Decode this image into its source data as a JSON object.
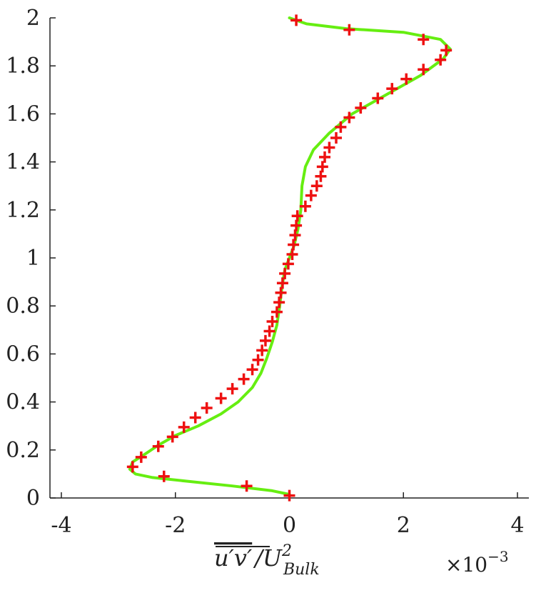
{
  "chart_data": {
    "type": "line",
    "xlabel": {
      "overline": "u′v′",
      "slash": "/",
      "base": "U",
      "sup": "2",
      "sub": "Bulk"
    },
    "x_multiplier": "×10",
    "x_multiplier_exp": "−3",
    "xlim": [
      -4.2,
      4.2
    ],
    "ylim": [
      0,
      2
    ],
    "x_ticks": [
      -4,
      -2,
      0,
      2,
      4
    ],
    "x_tick_labels": [
      "-4",
      "-2",
      "0",
      "2",
      "4"
    ],
    "y_ticks": [
      0,
      0.2,
      0.4,
      0.6,
      0.8,
      1,
      1.2,
      1.4,
      1.6,
      1.8,
      2
    ],
    "y_tick_labels": [
      "0",
      "0.2",
      "0.4",
      "0.6",
      "0.8",
      "1",
      "1.2",
      "1.4",
      "1.6",
      "1.8",
      "2"
    ],
    "grid": false,
    "series": [
      {
        "type": "line",
        "color": "#66ee11",
        "points": [
          [
            0.0,
            0.015
          ],
          [
            -0.3,
            0.03
          ],
          [
            -1.0,
            0.05
          ],
          [
            -1.8,
            0.07
          ],
          [
            -2.4,
            0.085
          ],
          [
            -2.7,
            0.1
          ],
          [
            -2.8,
            0.12
          ],
          [
            -2.75,
            0.15
          ],
          [
            -2.55,
            0.18
          ],
          [
            -2.3,
            0.22
          ],
          [
            -2.0,
            0.26
          ],
          [
            -1.6,
            0.3
          ],
          [
            -1.2,
            0.35
          ],
          [
            -0.9,
            0.4
          ],
          [
            -0.65,
            0.46
          ],
          [
            -0.5,
            0.52
          ],
          [
            -0.4,
            0.58
          ],
          [
            -0.3,
            0.65
          ],
          [
            -0.22,
            0.72
          ],
          [
            -0.17,
            0.8
          ],
          [
            -0.13,
            0.88
          ],
          [
            -0.08,
            0.95
          ],
          [
            0.0,
            1.0
          ],
          [
            0.08,
            1.05
          ],
          [
            0.15,
            1.12
          ],
          [
            0.2,
            1.2
          ],
          [
            0.22,
            1.3
          ],
          [
            0.28,
            1.38
          ],
          [
            0.42,
            1.45
          ],
          [
            0.7,
            1.52
          ],
          [
            1.1,
            1.6
          ],
          [
            1.7,
            1.68
          ],
          [
            2.3,
            1.76
          ],
          [
            2.7,
            1.83
          ],
          [
            2.82,
            1.87
          ],
          [
            2.65,
            1.91
          ],
          [
            2.0,
            1.94
          ],
          [
            1.0,
            1.955
          ],
          [
            0.3,
            1.975
          ],
          [
            0.0,
            2.0
          ]
        ]
      },
      {
        "type": "scatter",
        "marker": "+",
        "color": "#ee1111",
        "points": [
          [
            0.0,
            0.01
          ],
          [
            -0.75,
            0.05
          ],
          [
            -2.2,
            0.09
          ],
          [
            -2.75,
            0.13
          ],
          [
            -2.6,
            0.17
          ],
          [
            -2.3,
            0.215
          ],
          [
            -2.05,
            0.255
          ],
          [
            -1.85,
            0.295
          ],
          [
            -1.65,
            0.335
          ],
          [
            -1.45,
            0.375
          ],
          [
            -1.2,
            0.415
          ],
          [
            -1.0,
            0.455
          ],
          [
            -0.8,
            0.495
          ],
          [
            -0.65,
            0.535
          ],
          [
            -0.55,
            0.575
          ],
          [
            -0.48,
            0.615
          ],
          [
            -0.42,
            0.655
          ],
          [
            -0.35,
            0.695
          ],
          [
            -0.3,
            0.735
          ],
          [
            -0.22,
            0.775
          ],
          [
            -0.18,
            0.815
          ],
          [
            -0.15,
            0.855
          ],
          [
            -0.12,
            0.895
          ],
          [
            -0.08,
            0.935
          ],
          [
            -0.02,
            0.975
          ],
          [
            0.05,
            1.015
          ],
          [
            0.07,
            1.055
          ],
          [
            0.1,
            1.095
          ],
          [
            0.12,
            1.135
          ],
          [
            0.14,
            1.175
          ],
          [
            0.28,
            1.215
          ],
          [
            0.38,
            1.26
          ],
          [
            0.48,
            1.3
          ],
          [
            0.55,
            1.34
          ],
          [
            0.58,
            1.38
          ],
          [
            0.62,
            1.42
          ],
          [
            0.7,
            1.46
          ],
          [
            0.82,
            1.5
          ],
          [
            0.9,
            1.545
          ],
          [
            1.05,
            1.585
          ],
          [
            1.25,
            1.625
          ],
          [
            1.55,
            1.665
          ],
          [
            1.8,
            1.705
          ],
          [
            2.05,
            1.745
          ],
          [
            2.35,
            1.785
          ],
          [
            2.65,
            1.825
          ],
          [
            2.75,
            1.865
          ],
          [
            2.35,
            1.91
          ],
          [
            1.05,
            1.95
          ],
          [
            0.12,
            1.99
          ]
        ]
      }
    ]
  }
}
